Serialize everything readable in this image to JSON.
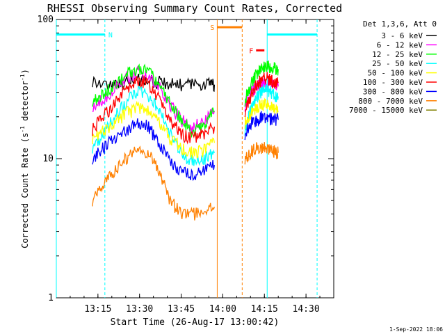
{
  "chart_data": {
    "type": "line",
    "title": "RHESSI Observing Summary Count Rates, Corrected",
    "xlabel": "Start Time (26-Aug-17 13:00:42)",
    "ylabel": "Corrected Count Rate (s⁻¹ detector⁻¹)",
    "ylabel_parts": {
      "main": "Corrected Count Rate (s",
      "sup1": "-1",
      "mid": " detector",
      "sup2": "-1",
      "end": ")"
    },
    "yscale": "log",
    "ylim": [
      1,
      100
    ],
    "xlim_minutes": [
      0,
      100
    ],
    "x_ticks": [
      {
        "minute": 15,
        "label": "13:15"
      },
      {
        "minute": 30,
        "label": "13:30"
      },
      {
        "minute": 45,
        "label": "13:45"
      },
      {
        "minute": 60,
        "label": "14:00"
      },
      {
        "minute": 75,
        "label": "14:15"
      },
      {
        "minute": 90,
        "label": "14:30"
      }
    ],
    "y_ticks": [
      {
        "value": 1,
        "label": "1"
      },
      {
        "value": 10,
        "label": "10"
      },
      {
        "value": 100,
        "label": "100"
      }
    ],
    "legend": {
      "position": "right",
      "header": "Det 1,3,6, Att 0",
      "entries": [
        {
          "label": "3 - 6 keV",
          "color": "#000000"
        },
        {
          "label": "6 - 12 keV",
          "color": "#ff00ff"
        },
        {
          "label": "12 - 25 keV",
          "color": "#00ff00"
        },
        {
          "label": "25 - 50 keV",
          "color": "#00ffff"
        },
        {
          "label": "50 - 100 keV",
          "color": "#ffff00"
        },
        {
          "label": "100 - 300 keV",
          "color": "#ff0000"
        },
        {
          "label": "300 - 800 keV",
          "color": "#0000ff"
        },
        {
          "label": "800 - 7000 keV",
          "color": "#ff8000"
        },
        {
          "label": "7000 - 15000 keV",
          "color": "#808000"
        }
      ]
    },
    "flags": [
      {
        "label": "N",
        "color": "#00ffff",
        "start": 0,
        "end": 17.5,
        "level": 78,
        "line_style": "dashed"
      },
      {
        "label": "S",
        "color": "#ff8000",
        "start": 58,
        "end": 67,
        "level": 88,
        "line_style": "dashed"
      },
      {
        "label": "F",
        "color": "#ff0000",
        "start": 72,
        "end": 75,
        "level": 60,
        "line_style": "none"
      },
      {
        "label": "",
        "color": "#00ffff",
        "start": 76,
        "end": 94,
        "level": 78,
        "line_style": "dashed"
      }
    ],
    "series": [
      {
        "name": "3 - 6 keV",
        "color": "#000000",
        "segments": [
          {
            "x": [
              13,
              20,
              25,
              30,
              35,
              40,
              45,
              50,
              55,
              57
            ],
            "y": [
              36,
              34,
              35,
              37,
              36,
              35,
              34,
              34,
              35,
              34
            ]
          }
        ]
      },
      {
        "name": "6 - 12 keV",
        "color": "#ff00ff",
        "segments": [
          {
            "x": [
              13,
              17,
              21,
              25,
              29,
              33,
              37,
              41,
              45,
              49,
              53,
              57
            ],
            "y": [
              24,
              27,
              32,
              38,
              42,
              40,
              33,
              24,
              19,
              17,
              18,
              22
            ]
          },
          {
            "x": [
              68,
              70,
              72,
              74,
              76,
              78,
              80
            ],
            "y": [
              24,
              30,
              33,
              35,
              36,
              34,
              33
            ]
          }
        ]
      },
      {
        "name": "12 - 25 keV",
        "color": "#00ff00",
        "segments": [
          {
            "x": [
              13,
              17,
              21,
              25,
              29,
              33,
              37,
              41,
              45,
              49,
              53,
              57
            ],
            "y": [
              26,
              29,
              34,
              40,
              44,
              42,
              35,
              25,
              19,
              16,
              17,
              22
            ]
          },
          {
            "x": [
              68,
              70,
              72,
              74,
              76,
              78,
              80
            ],
            "y": [
              26,
              34,
              40,
              46,
              47,
              45,
              44
            ]
          }
        ]
      },
      {
        "name": "25 - 50 keV",
        "color": "#00ffff",
        "segments": [
          {
            "x": [
              13,
              17,
              21,
              25,
              29,
              33,
              37,
              41,
              45,
              49,
              53,
              57
            ],
            "y": [
              12,
              15,
              20,
              25,
              31,
              29,
              22,
              15,
              11,
              9.5,
              10,
              11
            ]
          },
          {
            "x": [
              68,
              70,
              72,
              74,
              76,
              78,
              80
            ],
            "y": [
              16,
              22,
              27,
              31,
              32,
              29,
              28
            ]
          }
        ]
      },
      {
        "name": "50 - 100 keV",
        "color": "#ffff00",
        "segments": [
          {
            "x": [
              13,
              17,
              21,
              25,
              29,
              33,
              37,
              41,
              45,
              49,
              53,
              57
            ],
            "y": [
              14,
              16,
              18,
              21,
              23,
              22,
              18,
              14,
              12,
              11,
              11.5,
              13
            ]
          },
          {
            "x": [
              68,
              70,
              72,
              74,
              76,
              78,
              80
            ],
            "y": [
              18,
              21,
              23,
              25,
              24,
              23,
              22
            ]
          }
        ]
      },
      {
        "name": "100 - 300 keV",
        "color": "#ff0000",
        "segments": [
          {
            "x": [
              13,
              17,
              21,
              25,
              29,
              33,
              37,
              41,
              45,
              49,
              53,
              57
            ],
            "y": [
              16,
              20,
              25,
              32,
              37,
              35,
              27,
              19,
              15,
              14,
              15,
              17
            ]
          },
          {
            "x": [
              68,
              70,
              72,
              74,
              76,
              78,
              80
            ],
            "y": [
              22,
              28,
              33,
              37,
              38,
              36,
              35
            ]
          }
        ]
      },
      {
        "name": "300 - 800 keV",
        "color": "#0000ff",
        "segments": [
          {
            "x": [
              13,
              17,
              21,
              25,
              29,
              33,
              37,
              41,
              45,
              49,
              53,
              57
            ],
            "y": [
              10,
              12,
              14,
              16,
              18,
              17,
              13,
              9.5,
              8,
              7.5,
              8,
              9
            ]
          },
          {
            "x": [
              68,
              70,
              72,
              74,
              76,
              78,
              80
            ],
            "y": [
              15,
              18,
              19,
              20,
              20,
              19,
              19
            ]
          }
        ]
      },
      {
        "name": "800 - 7000 keV",
        "color": "#ff8000",
        "segments": [
          {
            "x": [
              13,
              17,
              21,
              25,
              29,
              33,
              37,
              41,
              45,
              49,
              53,
              57
            ],
            "y": [
              5,
              6.5,
              8,
              10,
              12,
              11,
              8,
              5,
              4,
              4,
              4.2,
              4.5
            ]
          },
          {
            "x": [
              68,
              70,
              72,
              74,
              76,
              78,
              80
            ],
            "y": [
              10,
              11,
              12,
              12,
              12,
              11.5,
              11
            ]
          }
        ]
      },
      {
        "name": "7000 - 15000 keV",
        "color": "#808000",
        "segments": []
      }
    ]
  },
  "timestamp": "1-Sep-2022 18:06"
}
